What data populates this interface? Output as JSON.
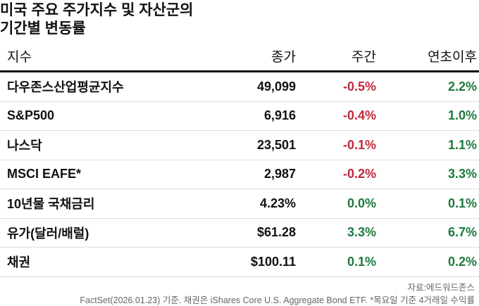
{
  "header": {
    "title_lines": [
      "미국 주요 주가지수 및 자산군의",
      "기간별 변동률"
    ]
  },
  "table": {
    "columns": [
      "지수",
      "종가",
      "주간",
      "연초이후"
    ],
    "rows": [
      [
        "다우존스산업평균지수",
        "49,099",
        "-0.5%",
        "2.2%"
      ],
      [
        "S&P500",
        "6,916",
        "-0.4%",
        "1.0%"
      ],
      [
        "나스닥",
        "23,501",
        "-0.1%",
        "1.1%"
      ],
      [
        "MSCI EAFE*",
        "2,987",
        "-0.2%",
        "3.3%"
      ],
      [
        "10년물 국채금리",
        "4.23%",
        "0.0%",
        "0.1%"
      ],
      [
        "유가(달러/배럴)",
        "$61.28",
        "3.3%",
        "6.7%"
      ],
      [
        "채권",
        "$100.11",
        "0.1%",
        "0.2%"
      ]
    ]
  },
  "footer": {
    "credit": "자료:에드워드존스",
    "note": "FactSet(2026.01.23) 기준. 채권은 iShares Core U.S. Aggregate Bond ETF. *목요일 기준 4거래일 수익률"
  }
}
